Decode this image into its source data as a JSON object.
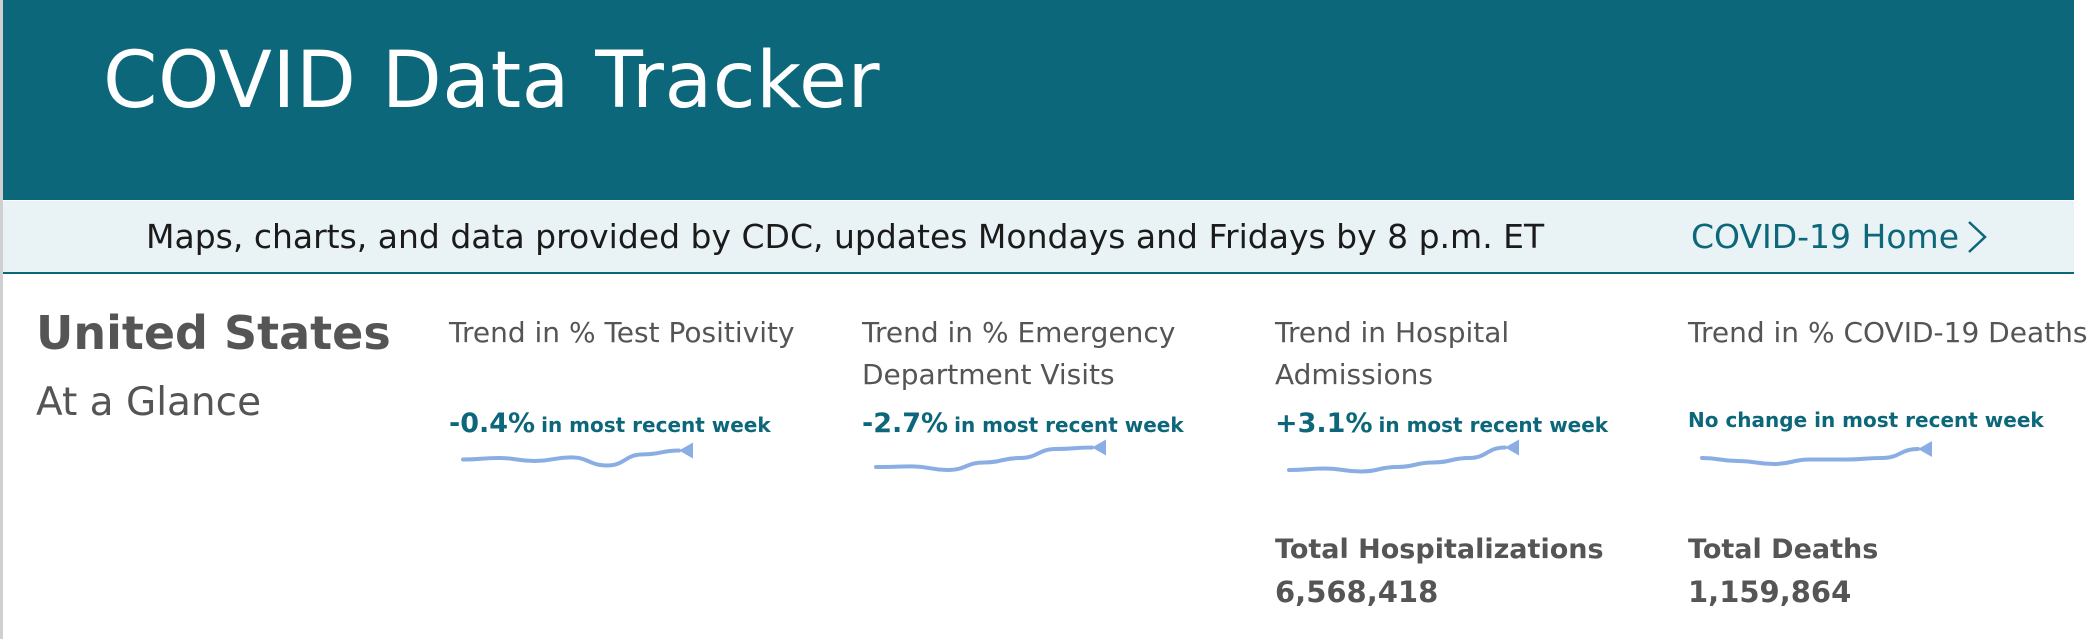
{
  "header": {
    "title": "COVID Data Tracker",
    "background_color": "#0b6779"
  },
  "subbar": {
    "description": "Maps, charts, and data provided by CDC, updates Mondays and Fridays by 8 p.m. ET",
    "home_link": "COVID-19 Home",
    "home_icon": "chevron-right-icon"
  },
  "glance": {
    "region": "United States",
    "subtitle": "At a Glance"
  },
  "trends": [
    {
      "title": "Trend in % Test Positivity",
      "change": "-0.4%",
      "suffix": "in most recent week",
      "spark": [
        0.55,
        0.6,
        0.5,
        0.62,
        0.35,
        0.72,
        0.85
      ]
    },
    {
      "title": "Trend in % Emergency Department Visits",
      "change": "-2.7%",
      "suffix": "in most recent week",
      "spark": [
        0.3,
        0.32,
        0.2,
        0.45,
        0.6,
        0.9,
        0.95
      ]
    },
    {
      "title": "Trend in Hospital Admissions",
      "change": "+3.1%",
      "suffix": "in most recent week",
      "spark": [
        0.2,
        0.25,
        0.15,
        0.3,
        0.45,
        0.6,
        0.95
      ]
    },
    {
      "title": "Trend in % COVID-19 Deaths",
      "change": "",
      "suffix": "No change in most recent week",
      "spark": [
        0.6,
        0.5,
        0.4,
        0.55,
        0.55,
        0.6,
        0.9
      ]
    }
  ],
  "totals": {
    "hospitalizations_label": "Total Hospitalizations",
    "hospitalizations_value": "6,568,418",
    "deaths_label": "Total Deaths",
    "deaths_value": "1,159,864"
  },
  "colors": {
    "accent": "#0b6779",
    "sparkline": "#8aaee3",
    "subbar_bg": "#e9f2f5"
  }
}
